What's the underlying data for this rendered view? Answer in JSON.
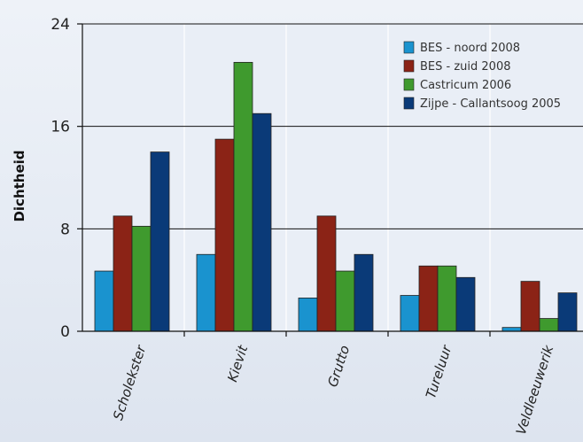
{
  "chart_data": {
    "type": "bar",
    "title": "",
    "xlabel": "",
    "ylabel": "Dichtheid",
    "ylim": [
      0,
      24
    ],
    "yticks": [
      0,
      8,
      16,
      24
    ],
    "grid": true,
    "legend_position": "top-right",
    "categories": [
      "Scholekster",
      "Kievit",
      "Grutto",
      "Tureluur",
      "Veldleeuwerik"
    ],
    "series": [
      {
        "name": "BES - noord 2008",
        "color": "#1a93cf",
        "values": [
          4.7,
          6.0,
          2.6,
          2.8,
          0.3
        ]
      },
      {
        "name": "BES - zuid 2008",
        "color": "#8b2316",
        "values": [
          9.0,
          15.0,
          9.0,
          5.1,
          3.9
        ]
      },
      {
        "name": "Castricum 2006",
        "color": "#3f9a2e",
        "values": [
          8.2,
          21.0,
          4.7,
          5.1,
          1.0
        ]
      },
      {
        "name": "Zijpe - Callantsoog 2005",
        "color": "#0a3a78",
        "values": [
          14.0,
          17.0,
          6.0,
          4.2,
          3.0
        ]
      }
    ]
  }
}
